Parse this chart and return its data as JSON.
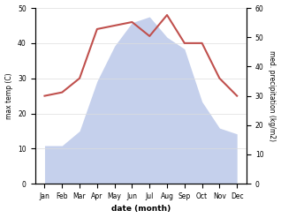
{
  "months": [
    "Jan",
    "Feb",
    "Mar",
    "Apr",
    "May",
    "Jun",
    "Jul",
    "Aug",
    "Sep",
    "Oct",
    "Nov",
    "Dec"
  ],
  "temperature": [
    25,
    26,
    30,
    44,
    45,
    46,
    42,
    48,
    40,
    40,
    30,
    25
  ],
  "precipitation": [
    13,
    13,
    18,
    35,
    47,
    55,
    57,
    50,
    46,
    28,
    19,
    17
  ],
  "temp_color": "#c0504d",
  "precip_fill_color": "#c5d0ec",
  "xlabel": "date (month)",
  "ylabel_left": "max temp (C)",
  "ylabel_right": "med. precipitation (kg/m2)",
  "ylim_left": [
    0,
    50
  ],
  "ylim_right": [
    0,
    60
  ],
  "yticks_left": [
    0,
    10,
    20,
    30,
    40,
    50
  ],
  "yticks_right": [
    0,
    10,
    20,
    30,
    40,
    50,
    60
  ],
  "background_color": "#ffffff"
}
